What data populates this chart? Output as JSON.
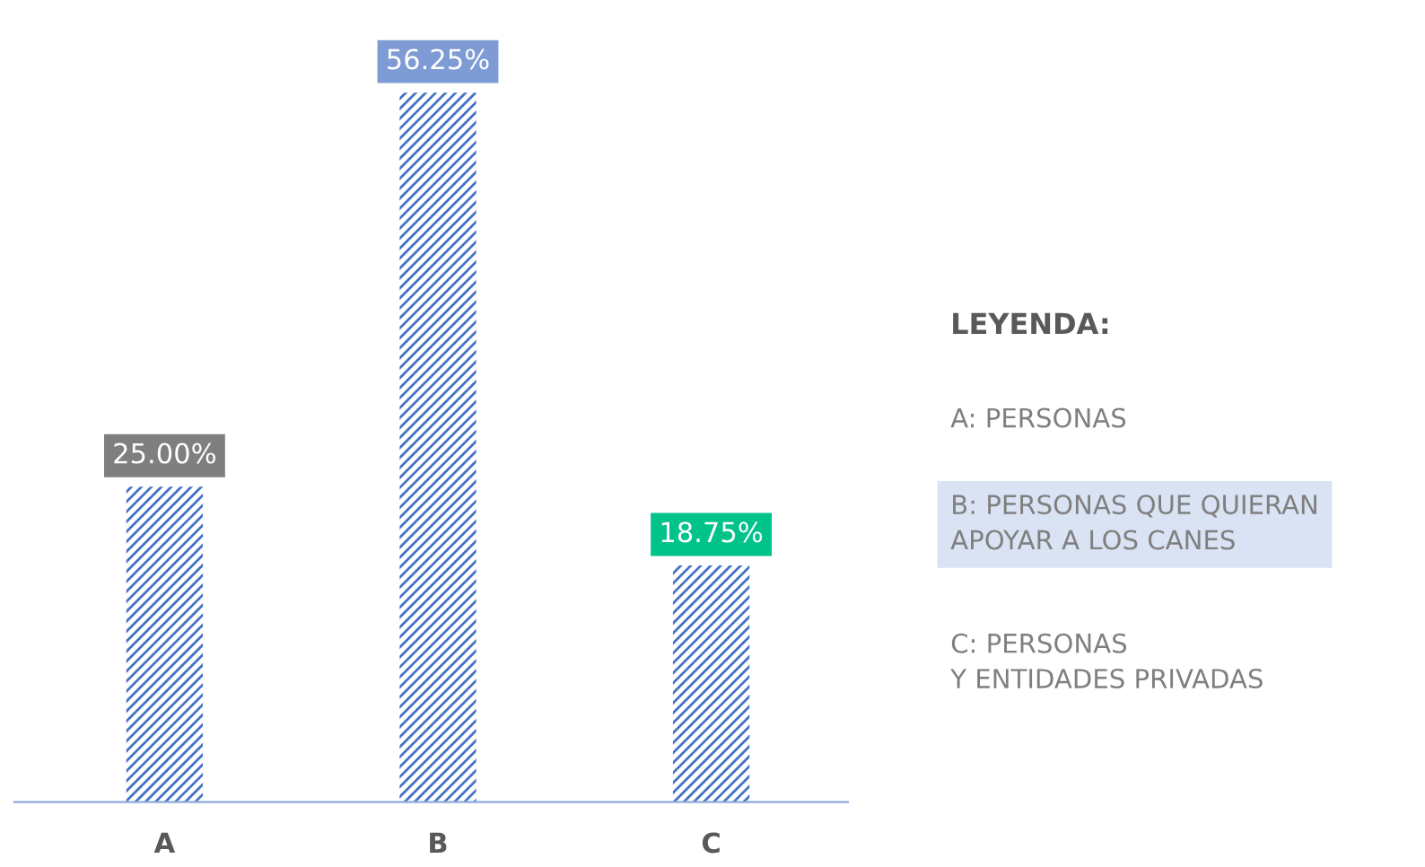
{
  "chart_data": {
    "type": "bar",
    "categories": [
      "A",
      "B",
      "C"
    ],
    "values": [
      25.0,
      56.25,
      18.75
    ],
    "color": "#4472c4",
    "value_labels": [
      "25.00%",
      "56.25%",
      "18.75%"
    ],
    "annotations": [
      "LEYENDA:",
      "A: PERSONAS",
      "B: PERSONAS QUE QUIERAN\nAPOYAR A LOS CANES",
      "C: PERSONAS\nY ENTIDADES PRIVADAS"
    ],
    "grid": false,
    "legend": false
  }
}
